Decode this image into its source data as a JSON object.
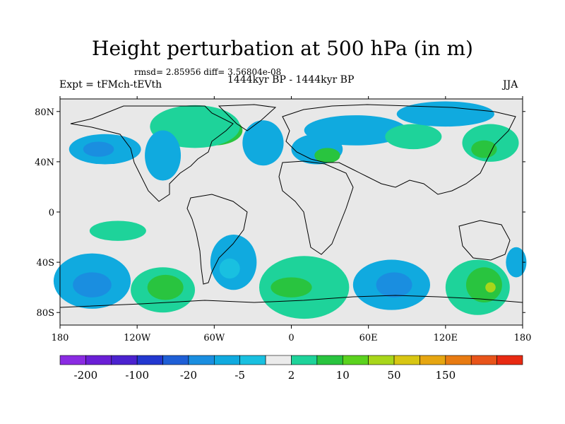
{
  "chart_data": {
    "type": "heatmap",
    "title": "Height perturbation at 500 hPa (in m)",
    "stats_text": "rmsd= 2.85956 diff= 3.56804e-08",
    "left_label": "Expt = tFMch-tEVth",
    "center_label": "1444kyr BP - 1444kyr BP",
    "right_label": "JJA",
    "xlim": [
      -180,
      180
    ],
    "ylim": [
      -90,
      90
    ],
    "x_ticks": [
      {
        "value": -180,
        "label": "180"
      },
      {
        "value": -120,
        "label": "120W"
      },
      {
        "value": -60,
        "label": "60W"
      },
      {
        "value": 0,
        "label": "0"
      },
      {
        "value": 60,
        "label": "60E"
      },
      {
        "value": 120,
        "label": "120E"
      },
      {
        "value": 180,
        "label": "180"
      }
    ],
    "y_ticks": [
      {
        "value": 80,
        "label": "80N"
      },
      {
        "value": 40,
        "label": "40N"
      },
      {
        "value": 0,
        "label": "0"
      },
      {
        "value": -40,
        "label": "40S"
      },
      {
        "value": -80,
        "label": "80S"
      }
    ],
    "background_color": "#e8e8e8",
    "colorbar": {
      "colors": [
        "#8a2be2",
        "#6a1fd6",
        "#4b22cf",
        "#2338d0",
        "#1f5fd6",
        "#1a8ee0",
        "#10aadf",
        "#19c0e0",
        "#ebebeb",
        "#1ed39a",
        "#29c43f",
        "#5bd21e",
        "#a8d61a",
        "#d8c613",
        "#e6a611",
        "#e87b12",
        "#e8541a",
        "#e82a12"
      ],
      "labels": [
        {
          "boundary": 1,
          "text": "-200"
        },
        {
          "boundary": 3,
          "text": "-100"
        },
        {
          "boundary": 5,
          "text": "-20"
        },
        {
          "boundary": 7,
          "text": "-5"
        },
        {
          "boundary": 9,
          "text": "2"
        },
        {
          "boundary": 11,
          "text": "10"
        },
        {
          "boundary": 13,
          "text": "50"
        },
        {
          "boundary": 15,
          "text": "150"
        }
      ]
    },
    "anomaly_regions": [
      {
        "name": "north-atlantic-positive",
        "color": "#29c43f",
        "lon": -60,
        "lat": 65,
        "rlon": 22,
        "rlat": 12
      },
      {
        "name": "greenland-band-positive",
        "color": "#1ed39a",
        "lon": -75,
        "lat": 68,
        "rlon": 35,
        "rlat": 17
      },
      {
        "name": "north-pacific-negative",
        "color": "#10aadf",
        "lon": -145,
        "lat": 50,
        "rlon": 28,
        "rlat": 12
      },
      {
        "name": "north-pacific-negative-core",
        "color": "#1a8ee0",
        "lon": -150,
        "lat": 50,
        "rlon": 12,
        "rlat": 6
      },
      {
        "name": "north-america-negative",
        "color": "#10aadf",
        "lon": -100,
        "lat": 45,
        "rlon": 14,
        "rlat": 20
      },
      {
        "name": "north-atlantic-negative",
        "color": "#10aadf",
        "lon": -22,
        "lat": 55,
        "rlon": 16,
        "rlat": 18
      },
      {
        "name": "europe-negative",
        "color": "#10aadf",
        "lon": 50,
        "lat": 65,
        "rlon": 40,
        "rlat": 12
      },
      {
        "name": "europe-negative-band",
        "color": "#10aadf",
        "lon": 20,
        "lat": 50,
        "rlon": 20,
        "rlat": 12
      },
      {
        "name": "mediterranean-positive",
        "color": "#29c43f",
        "lon": 28,
        "lat": 45,
        "rlon": 10,
        "rlat": 6
      },
      {
        "name": "siberia-positive",
        "color": "#1ed39a",
        "lon": 95,
        "lat": 60,
        "rlon": 22,
        "rlat": 10
      },
      {
        "name": "east-asia-negative",
        "color": "#10aadf",
        "lon": 120,
        "lat": 78,
        "rlon": 38,
        "rlat": 10
      },
      {
        "name": "north-pacific-east-positive",
        "color": "#1ed39a",
        "lon": 155,
        "lat": 55,
        "rlon": 22,
        "rlat": 15
      },
      {
        "name": "north-pacific-east-core",
        "color": "#29c43f",
        "lon": 150,
        "lat": 50,
        "rlon": 10,
        "rlat": 7
      },
      {
        "name": "tropical-pacific-positive",
        "color": "#1ed39a",
        "lon": -135,
        "lat": -15,
        "rlon": 22,
        "rlat": 8
      },
      {
        "name": "south-pacific-negative",
        "color": "#10aadf",
        "lon": -155,
        "lat": -55,
        "rlon": 30,
        "rlat": 22
      },
      {
        "name": "south-pacific-negative-core",
        "color": "#1a8ee0",
        "lon": -155,
        "lat": -58,
        "rlon": 15,
        "rlat": 10
      },
      {
        "name": "south-pacific-positive",
        "color": "#1ed39a",
        "lon": -100,
        "lat": -62,
        "rlon": 25,
        "rlat": 18
      },
      {
        "name": "south-pacific-positive-core",
        "color": "#29c43f",
        "lon": -98,
        "lat": -60,
        "rlon": 14,
        "rlat": 10
      },
      {
        "name": "south-america-negative",
        "color": "#10aadf",
        "lon": -45,
        "lat": -40,
        "rlon": 18,
        "rlat": 22
      },
      {
        "name": "south-america-negative-core",
        "color": "#19c0e0",
        "lon": -48,
        "lat": -45,
        "rlon": 8,
        "rlat": 8
      },
      {
        "name": "south-atlantic-positive",
        "color": "#1ed39a",
        "lon": 10,
        "lat": -60,
        "rlon": 35,
        "rlat": 25
      },
      {
        "name": "south-atlantic-positive-core",
        "color": "#29c43f",
        "lon": 0,
        "lat": -60,
        "rlon": 16,
        "rlat": 8
      },
      {
        "name": "indian-ocean-negative",
        "color": "#10aadf",
        "lon": 78,
        "lat": -58,
        "rlon": 30,
        "rlat": 20
      },
      {
        "name": "indian-ocean-negative-core",
        "color": "#1a8ee0",
        "lon": 80,
        "lat": -58,
        "rlon": 14,
        "rlat": 10
      },
      {
        "name": "australia-positive",
        "color": "#1ed39a",
        "lon": 145,
        "lat": -60,
        "rlon": 25,
        "rlat": 22
      },
      {
        "name": "australia-positive-core",
        "color": "#29c43f",
        "lon": 150,
        "lat": -58,
        "rlon": 14,
        "rlat": 14
      },
      {
        "name": "australia-positive-peak",
        "color": "#a8d61a",
        "lon": 155,
        "lat": -60,
        "rlon": 4,
        "rlat": 4
      },
      {
        "name": "southeast-pacific-negative",
        "color": "#10aadf",
        "lon": 175,
        "lat": -40,
        "rlon": 8,
        "rlat": 12
      }
    ]
  }
}
